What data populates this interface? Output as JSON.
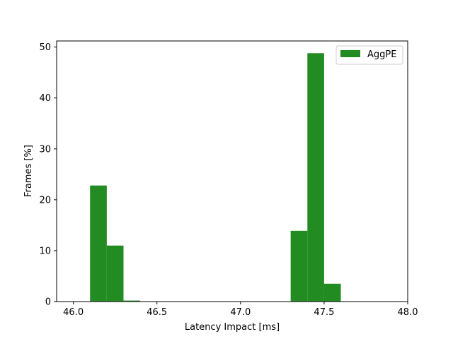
{
  "chart_data": {
    "type": "bar",
    "xlabel": "Latency Impact [ms]",
    "ylabel": "Frames [%]",
    "xlim": [
      45.9,
      48.0
    ],
    "ylim": [
      0,
      51.2
    ],
    "xticks": [
      "46.0",
      "46.5",
      "47.0",
      "47.5",
      "48.0"
    ],
    "yticks": [
      "0",
      "10",
      "20",
      "30",
      "40",
      "50"
    ],
    "grid": false,
    "legend_position": "top-right",
    "series": [
      {
        "name": "AggPE",
        "color": "#228b22",
        "bins": [
          {
            "x0": 46.1,
            "x1": 46.2,
            "value": 22.8
          },
          {
            "x0": 46.2,
            "x1": 46.3,
            "value": 11.0
          },
          {
            "x0": 46.3,
            "x1": 46.4,
            "value": 0.2
          },
          {
            "x0": 47.3,
            "x1": 47.4,
            "value": 13.9
          },
          {
            "x0": 47.4,
            "x1": 47.5,
            "value": 48.8
          },
          {
            "x0": 47.5,
            "x1": 47.6,
            "value": 3.5
          }
        ]
      }
    ]
  }
}
